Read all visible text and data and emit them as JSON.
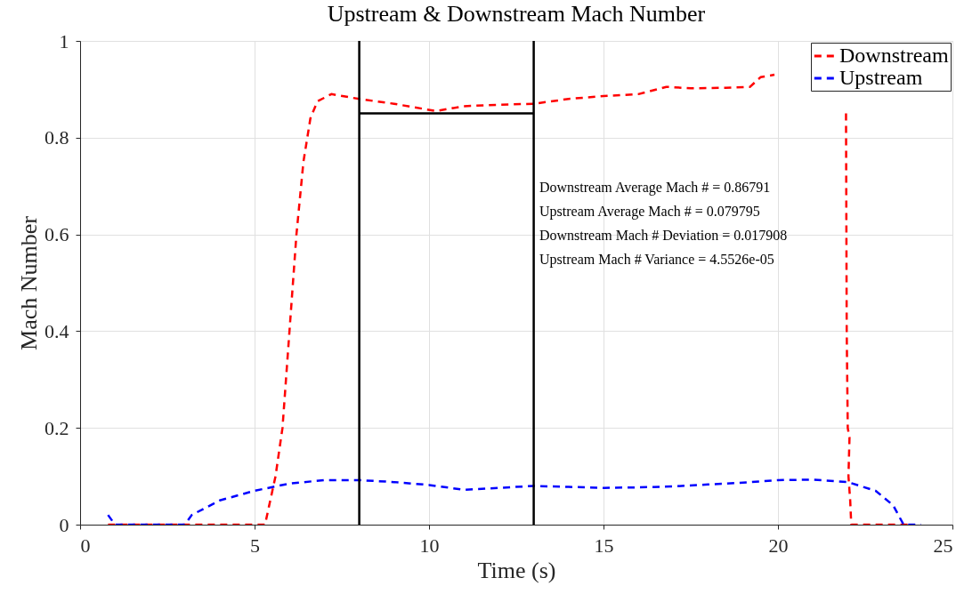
{
  "chart_data": {
    "type": "line",
    "title": "Upstream & Downstream Mach Number",
    "xlabel": "Time (s)",
    "ylabel": "Mach Number",
    "xlim": [
      0,
      25
    ],
    "xticks": [
      0,
      5,
      10,
      15,
      20,
      25
    ],
    "ylim": [
      0,
      1
    ],
    "yticks": [
      0,
      0.2,
      0.4,
      0.6,
      0.8,
      1
    ],
    "grid": true,
    "legend": "top right",
    "line_style": "dashed",
    "marker": "none",
    "series": [
      {
        "name": "Downstream",
        "color": "#ff0000",
        "x": [
          0.8,
          5.3,
          5.6,
          5.8,
          6.0,
          6.2,
          6.4,
          6.6,
          6.8,
          7.2,
          8,
          9,
          10.2,
          11,
          12,
          13,
          14,
          15,
          16,
          16.8,
          17.5,
          18.5,
          19.2,
          19.5,
          19.9,
          20.0,
          21.95,
          21.97,
          22.0,
          22.05,
          22.02,
          22.07,
          22.1,
          23.8
        ],
        "values": [
          0,
          0,
          0.1,
          0.2,
          0.4,
          0.6,
          0.75,
          0.84,
          0.875,
          0.89,
          0.88,
          0.87,
          0.855,
          0.865,
          0.868,
          0.87,
          0.88,
          0.886,
          0.89,
          0.905,
          0.902,
          0.903,
          0.905,
          0.925,
          0.93,
          null,
          0.85,
          0.4,
          0.2,
          0.18,
          0.1,
          0.05,
          0,
          0
        ]
      },
      {
        "name": "Upstream",
        "color": "#0000ff",
        "x": [
          0.8,
          1.0,
          3.0,
          3.2,
          4,
          5,
          6,
          7,
          8,
          9,
          10,
          11,
          12,
          13,
          14,
          15,
          16,
          17,
          18,
          19,
          20,
          21,
          22,
          22.8,
          23.3,
          23.6,
          24.1
        ],
        "values": [
          0.02,
          0,
          0,
          0.02,
          0.05,
          0.07,
          0.085,
          0.092,
          0.092,
          0.088,
          0.082,
          0.072,
          0.076,
          0.08,
          0.078,
          0.076,
          0.077,
          0.079,
          0.083,
          0.087,
          0.092,
          0.093,
          0.088,
          0.07,
          0.04,
          0,
          0
        ]
      },
      {
        "color": "#000000",
        "line_style": "solid",
        "x": [
          8,
          13
        ],
        "values": [
          0.85,
          0.85
        ]
      }
    ],
    "ref_lines": [
      {
        "axis": "x",
        "value": 8,
        "color": "#000000"
      },
      {
        "axis": "x",
        "value": 13,
        "color": "#000000"
      }
    ],
    "annotations": [
      "Downstream Average Mach # = 0.86791",
      "Upstream Average Mach # = 0.079795",
      "Downstream Mach # Deviation = 0.017908",
      "Upstream Mach # Variance = 4.5526e-05"
    ]
  }
}
